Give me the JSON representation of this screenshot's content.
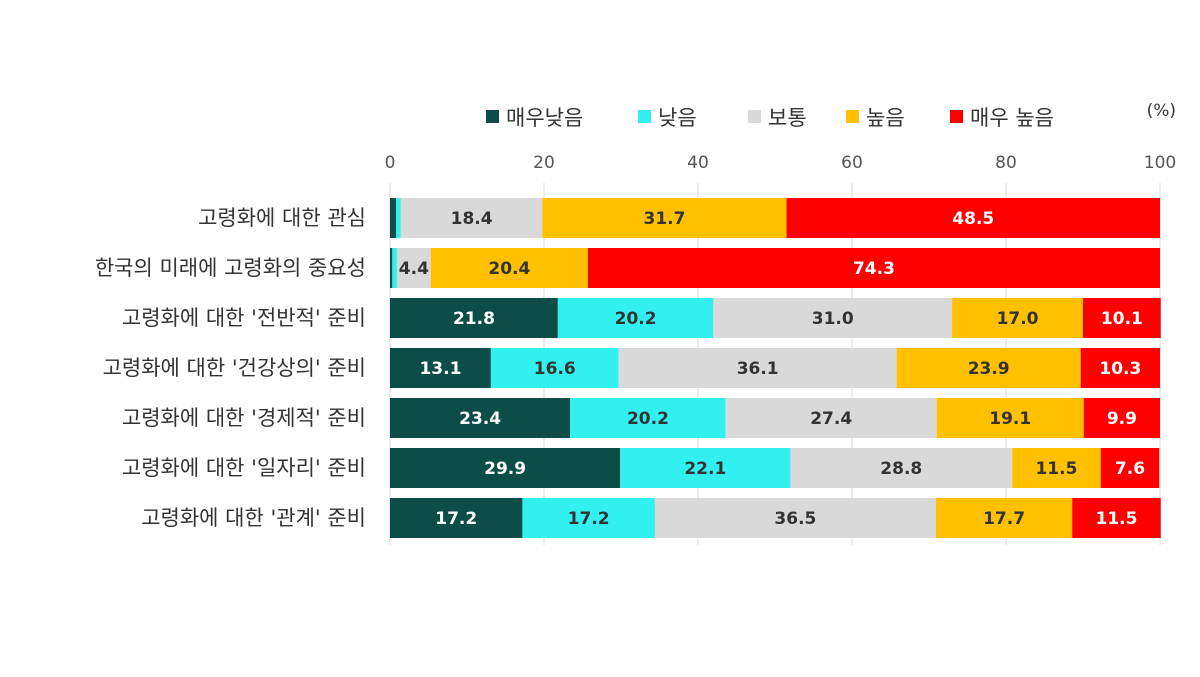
{
  "chart_data": {
    "type": "bar",
    "orientation": "horizontal",
    "stacked": true,
    "unit": "(%)",
    "xlim": [
      0,
      100
    ],
    "x_ticks": [
      "0",
      "20",
      "40",
      "60",
      "80",
      "100"
    ],
    "grid": "vertical",
    "legend_position": "top",
    "categories": [
      "고령화에 대한 관심",
      "한국의 미래에 고령화의 중요성",
      "고령화에 대한 '전반적' 준비",
      "고령화에 대한 '건강상의' 준비",
      "고령화에 대한 '경제적' 준비",
      "고령화에 대한 '일자리' 준비",
      "고령화에 대한 '관계' 준비"
    ],
    "series": [
      {
        "name": "매우낮음",
        "color": "#0d4d47",
        "label_color": "#ffffff",
        "values": [
          0.8,
          0.3,
          21.8,
          13.1,
          23.4,
          29.9,
          17.2
        ],
        "labels": [
          "",
          "",
          "21.8",
          "13.1",
          "23.4",
          "29.9",
          "17.2"
        ]
      },
      {
        "name": "낮음",
        "color": "#33f0f0",
        "label_color": "#333333",
        "values": [
          0.6,
          0.6,
          20.2,
          16.6,
          20.2,
          22.1,
          17.2
        ],
        "labels": [
          "",
          "",
          "20.2",
          "16.6",
          "20.2",
          "22.1",
          "17.2"
        ]
      },
      {
        "name": "보통",
        "color": "#d9d9d9",
        "label_color": "#333333",
        "values": [
          18.4,
          4.4,
          31.0,
          36.1,
          27.4,
          28.8,
          36.5
        ],
        "labels": [
          "18.4",
          "4.4",
          "31.0",
          "36.1",
          "27.4",
          "28.8",
          "36.5"
        ]
      },
      {
        "name": "높음",
        "color": "#ffc000",
        "label_color": "#333333",
        "values": [
          31.7,
          20.4,
          17.0,
          23.9,
          19.1,
          11.5,
          17.7
        ],
        "labels": [
          "31.7",
          "20.4",
          "17.0",
          "23.9",
          "19.1",
          "11.5",
          "17.7"
        ]
      },
      {
        "name": "매우 높음",
        "color": "#ff0000",
        "label_color": "#ffffff",
        "values": [
          48.5,
          74.3,
          10.1,
          10.3,
          9.9,
          7.6,
          11.5
        ],
        "labels": [
          "48.5",
          "74.3",
          "10.1",
          "10.3",
          "9.9",
          "7.6",
          "11.5"
        ]
      }
    ]
  }
}
